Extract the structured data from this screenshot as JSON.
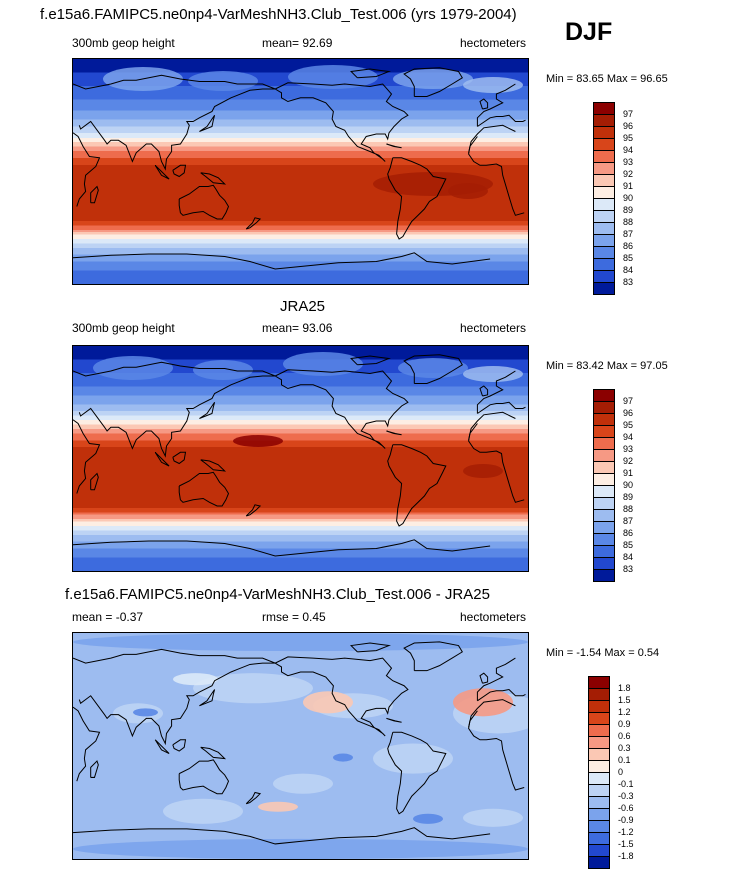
{
  "header": {
    "panel1_title": "f.e15a6.FAMIPC5.ne0np4-VarMeshNH3.Club_Test.006 (yrs 1979-2004)",
    "season": "DJF"
  },
  "chart_data": [
    {
      "type": "heatmap",
      "title": "",
      "left_label": "300mb geop height",
      "center_label": "mean=  92.69",
      "right_label": "hectometers",
      "mean": 92.69,
      "minmax": "Min =  83.65 Max =  96.65",
      "min": 83.65,
      "max": 96.65,
      "levels": [
        "97",
        "96",
        "95",
        "94",
        "93",
        "92",
        "91",
        "90",
        "89",
        "88",
        "87",
        "86",
        "85",
        "84",
        "83"
      ],
      "colors": [
        "#8b0000",
        "#a41d04",
        "#c0300a",
        "#d8451a",
        "#ee6c4d",
        "#f69984",
        "#fbc8b4",
        "#fdeee3",
        "#dce9f8",
        "#bdd3f4",
        "#9dbcf0",
        "#7ba3ec",
        "#5a87e6",
        "#3d6bde",
        "#2248cf",
        "#001a9a"
      ]
    },
    {
      "type": "heatmap",
      "title": "JRA25",
      "left_label": "300mb geop height",
      "center_label": "mean=  93.06",
      "right_label": "hectometers",
      "mean": 93.06,
      "minmax": "Min =  83.42 Max =  97.05",
      "min": 83.42,
      "max": 97.05,
      "levels": [
        "97",
        "96",
        "95",
        "94",
        "93",
        "92",
        "91",
        "90",
        "89",
        "88",
        "87",
        "86",
        "85",
        "84",
        "83"
      ],
      "colors": [
        "#8b0000",
        "#a41d04",
        "#c0300a",
        "#d8451a",
        "#ee6c4d",
        "#f69984",
        "#fbc8b4",
        "#fdeee3",
        "#dce9f8",
        "#bdd3f4",
        "#9dbcf0",
        "#7ba3ec",
        "#5a87e6",
        "#3d6bde",
        "#2248cf",
        "#001a9a"
      ]
    },
    {
      "type": "heatmap",
      "title": "f.e15a6.FAMIPC5.ne0np4-VarMeshNH3.Club_Test.006 - JRA25",
      "left_label": "mean =  -0.37",
      "center_label": "rmse =   0.45",
      "right_label": "hectometers",
      "mean": -0.37,
      "rmse": 0.45,
      "minmax": "Min =  -1.54 Max =   0.54",
      "min": -1.54,
      "max": 0.54,
      "levels": [
        "1.8",
        "1.5",
        "1.2",
        "0.9",
        "0.6",
        "0.3",
        "0.1",
        "0",
        "-0.1",
        "-0.3",
        "-0.6",
        "-0.9",
        "-1.2",
        "-1.5",
        "-1.8"
      ],
      "colors": [
        "#8b0000",
        "#a41d04",
        "#c0300a",
        "#d8451a",
        "#ee6c4d",
        "#f69984",
        "#fbc8b4",
        "#fdeee3",
        "#dce9f8",
        "#bdd3f4",
        "#9dbcf0",
        "#7ba3ec",
        "#5a87e6",
        "#3d6bde",
        "#2248cf",
        "#001a9a"
      ]
    }
  ]
}
